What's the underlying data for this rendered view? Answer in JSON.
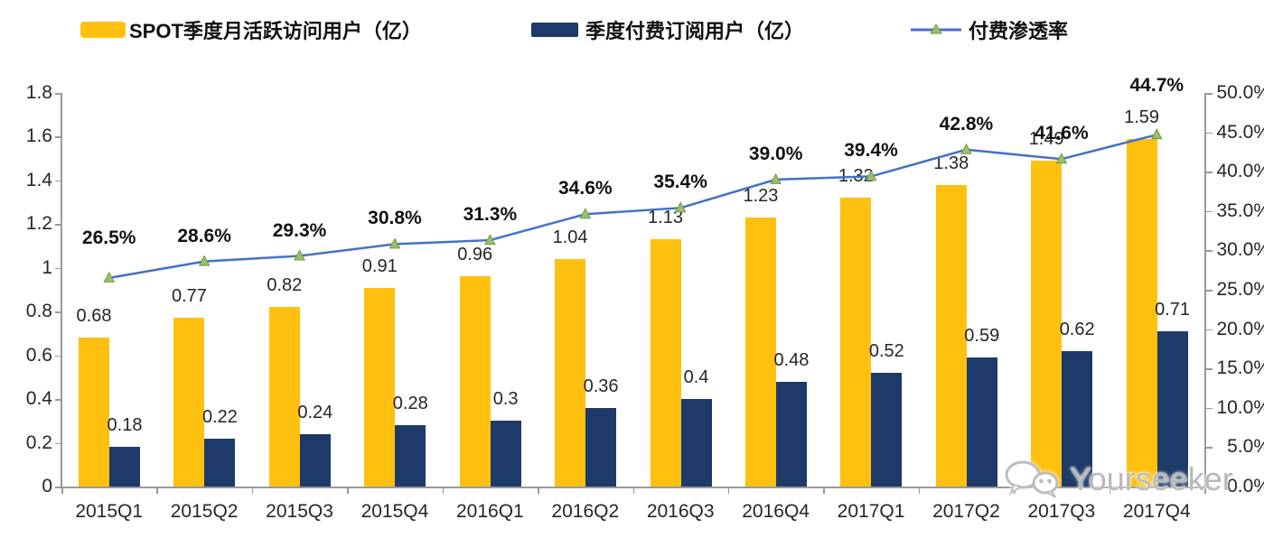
{
  "colors": {
    "bar_mau": "#FFC010",
    "bar_sub": "#1E3A68",
    "line": "#4472C4",
    "marker_fill": "#9BC06A",
    "marker_stroke": "#6F9A43",
    "axis": "#999999",
    "text": "#262626",
    "watermark": "#b9b9b9"
  },
  "legend": [
    {
      "label": "SPOT季度月活跃访问用户（亿）",
      "swatch": "yellow-bar-swatch"
    },
    {
      "label": "季度付费订阅用户（亿）",
      "swatch": "navy-bar-swatch"
    },
    {
      "label": "付费渗透率",
      "swatch": "line-with-triangle-marker"
    }
  ],
  "chart_data": {
    "type": "bar",
    "subtype": "grouped-bars-with-line-overlay",
    "categories": [
      "2015Q1",
      "2015Q2",
      "2015Q3",
      "2015Q4",
      "2016Q1",
      "2016Q2",
      "2016Q3",
      "2016Q4",
      "2017Q1",
      "2017Q2",
      "2017Q3",
      "2017Q4"
    ],
    "series": [
      {
        "name": "SPOT季度月活跃访问用户（亿）",
        "type": "bar",
        "axis": "left",
        "values": [
          0.68,
          0.77,
          0.82,
          0.91,
          0.96,
          1.04,
          1.13,
          1.23,
          1.32,
          1.38,
          1.49,
          1.59
        ],
        "labels": [
          "0.68",
          "0.77",
          "0.82",
          "0.91",
          "0.96",
          "1.04",
          "1.13",
          "1.23",
          "1.32",
          "1.38",
          "1.49",
          "1.59"
        ]
      },
      {
        "name": "季度付费订阅用户（亿）",
        "type": "bar",
        "axis": "left",
        "values": [
          0.18,
          0.22,
          0.24,
          0.28,
          0.3,
          0.36,
          0.4,
          0.48,
          0.52,
          0.59,
          0.62,
          0.71
        ],
        "labels": [
          "0.18",
          "0.22",
          "0.24",
          "0.28",
          "0.3",
          "0.36",
          "0.4",
          "0.48",
          "0.52",
          "0.59",
          "0.62",
          "0.71"
        ]
      },
      {
        "name": "付费渗透率",
        "type": "line",
        "axis": "right",
        "values": [
          26.5,
          28.6,
          29.3,
          30.8,
          31.3,
          34.6,
          35.4,
          39.0,
          39.4,
          42.8,
          41.6,
          44.7
        ],
        "labels": [
          "26.5%",
          "28.6%",
          "29.3%",
          "30.8%",
          "31.3%",
          "34.6%",
          "35.4%",
          "39.0%",
          "39.4%",
          "42.8%",
          "41.6%",
          "44.7%"
        ]
      }
    ],
    "left_axis": {
      "min": 0,
      "max": 1.8,
      "ticks": [
        "1.8",
        "1.6",
        "1.4",
        "1.2",
        "1",
        "0.8",
        "0.6",
        "0.4",
        "0.2",
        "0"
      ]
    },
    "right_axis": {
      "min": 0,
      "max": 50,
      "ticks": [
        "50.0%",
        "45.0%",
        "40.0%",
        "35.0%",
        "30.0%",
        "25.0%",
        "20.0%",
        "15.0%",
        "10.0%",
        "5.0%",
        "0.0%"
      ]
    },
    "grid": false,
    "legend_position": "top",
    "title": ""
  },
  "watermark": {
    "text": "Yourseeker",
    "icon": "wechat-icon"
  }
}
